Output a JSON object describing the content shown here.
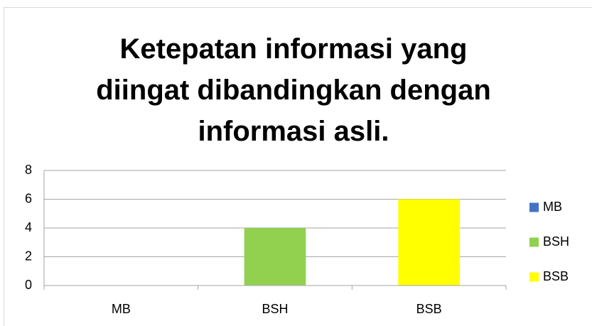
{
  "chart_data": {
    "type": "bar",
    "title": "Ketepatan informasi yang diingat dibandingkan dengan informasi asli.",
    "categories": [
      "MB",
      "BSH",
      "BSB"
    ],
    "values": [
      0,
      4,
      6
    ],
    "colors": [
      "#4472c4",
      "#92d050",
      "#ffff00"
    ],
    "ylim": [
      0,
      8
    ],
    "yticks": [
      0,
      2,
      4,
      6,
      8
    ],
    "grid": true,
    "legend": "right"
  }
}
